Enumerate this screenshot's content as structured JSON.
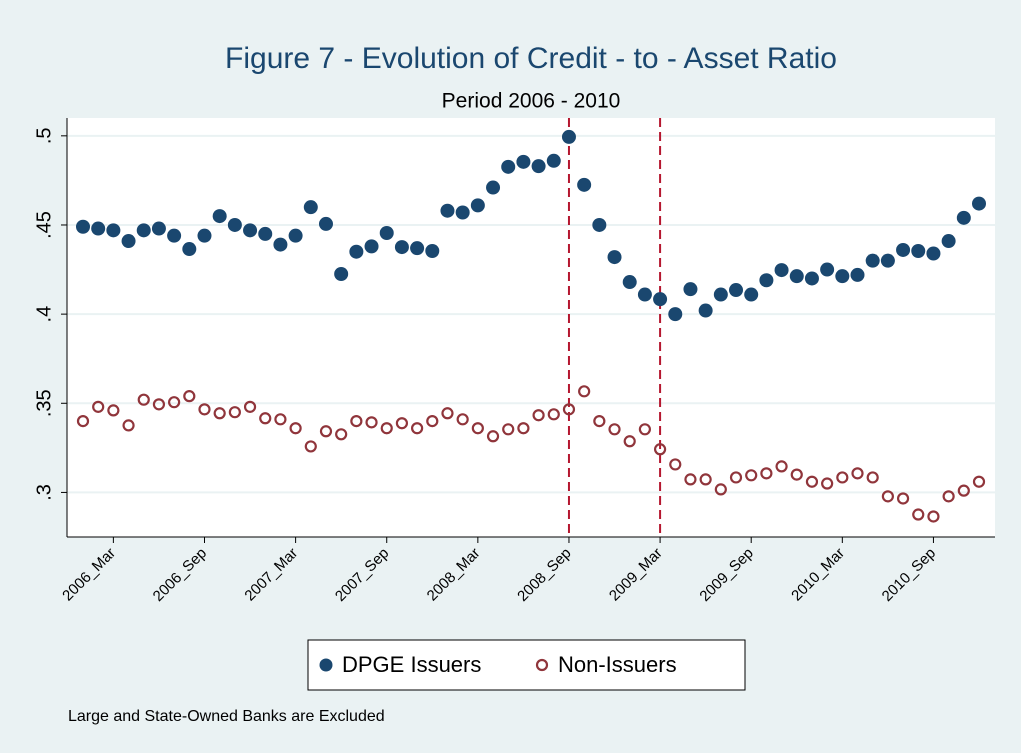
{
  "chart_data": {
    "type": "scatter",
    "title": "Figure 7 - Evolution of Credit - to - Asset Ratio",
    "subtitle": "Period 2006 - 2010",
    "note": "Large and State-Owned Banks are Excluded",
    "categories": [
      null,
      null,
      "2006_Mar",
      null,
      null,
      null,
      null,
      null,
      "2006_Sep",
      null,
      null,
      null,
      null,
      null,
      "2007_Mar",
      null,
      null,
      null,
      null,
      null,
      "2007_Sep",
      null,
      null,
      null,
      null,
      null,
      "2008_Mar",
      null,
      null,
      null,
      null,
      null,
      "2008_Sep",
      null,
      null,
      null,
      null,
      null,
      "2009_Mar",
      null,
      null,
      null,
      null,
      null,
      "2009_Sep",
      null,
      null,
      null,
      null,
      null,
      "2010_Mar",
      null,
      null,
      null,
      null,
      null,
      "2010_Sep",
      null,
      null,
      null
    ],
    "series": [
      {
        "name": "DPGE Issuers",
        "color": "#1a476f",
        "marker": "filled",
        "values": [
          0.449,
          0.448,
          0.447,
          0.441,
          0.447,
          0.448,
          0.444,
          0.4365,
          0.444,
          0.455,
          0.45,
          0.447,
          0.445,
          0.439,
          0.444,
          0.46,
          0.4506,
          0.4225,
          0.435,
          0.438,
          0.4455,
          0.4376,
          0.437,
          0.4354,
          0.458,
          0.457,
          0.461,
          0.471,
          0.4826,
          0.4854,
          0.483,
          0.486,
          0.4994,
          0.4725,
          0.45,
          0.432,
          0.418,
          0.411,
          0.4084,
          0.4,
          0.414,
          0.402,
          0.411,
          0.4135,
          0.411,
          0.419,
          0.4247,
          0.4213,
          0.42,
          0.425,
          0.4213,
          0.422,
          0.43,
          0.43,
          0.436,
          0.4354,
          0.434,
          0.441,
          0.454,
          0.462
        ]
      },
      {
        "name": "Non-Issuers",
        "color": "#90353b",
        "marker": "hollow",
        "values": [
          0.34,
          0.348,
          0.346,
          0.3376,
          0.352,
          0.3494,
          0.3506,
          0.354,
          0.3466,
          0.3444,
          0.345,
          0.348,
          0.3416,
          0.341,
          0.336,
          0.3258,
          0.3343,
          0.3326,
          0.34,
          0.3393,
          0.336,
          0.3388,
          0.336,
          0.34,
          0.3444,
          0.341,
          0.336,
          0.3315,
          0.3354,
          0.336,
          0.3433,
          0.3438,
          0.3466,
          0.3567,
          0.34,
          0.3354,
          0.3287,
          0.3354,
          0.3242,
          0.3157,
          0.3073,
          0.3073,
          0.3017,
          0.3084,
          0.3096,
          0.3107,
          0.3146,
          0.31,
          0.306,
          0.305,
          0.3084,
          0.3107,
          0.3084,
          0.2978,
          0.2966,
          0.2876,
          0.2865,
          0.2978,
          0.301,
          0.306
        ]
      }
    ],
    "vlines": [
      "2008_Sep",
      "2009_Mar"
    ],
    "vline_color": "#b5172f",
    "ylim": [
      0.275,
      0.51
    ],
    "yticks": [
      {
        "value": 0.3,
        "label": ".3"
      },
      {
        "value": 0.35,
        "label": ".35"
      },
      {
        "value": 0.4,
        "label": ".4"
      },
      {
        "value": 0.45,
        "label": ".45"
      },
      {
        "value": 0.5,
        "label": ".5"
      }
    ],
    "grid": true,
    "legend": "bottom"
  }
}
